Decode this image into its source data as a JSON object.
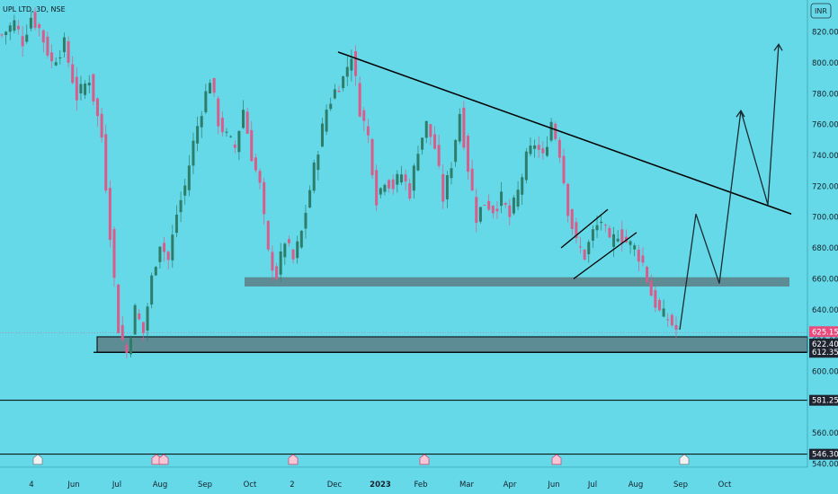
{
  "header": {
    "symbol_label": "UPL LTD, 3D, NSE"
  },
  "unit_button": "INR",
  "colors": {
    "background": "#65d9e8",
    "up_candle": "#2e7d6a",
    "down_candle": "#d95c8a",
    "zone": "#5e8c94",
    "line": "#000000",
    "last_price_tag": "#e84c7d",
    "tag_dark": "#1e2430"
  },
  "chart_data": {
    "type": "candlestick",
    "title": "",
    "ylim": [
      540,
      835
    ],
    "y_ticks": [
      540,
      560,
      580,
      600,
      620,
      640,
      660,
      680,
      700,
      720,
      740,
      760,
      780,
      800,
      820
    ],
    "x_labels": [
      "4",
      "Jun",
      "Jul",
      "Aug",
      "Sep",
      "Oct",
      "2",
      "Dec",
      "2023",
      "Feb",
      "Mar",
      "Apr",
      "Jun",
      "Jul",
      "Aug",
      "Sep",
      "Oct"
    ],
    "price_path": [
      [
        0,
        818
      ],
      [
        3,
        826
      ],
      [
        5,
        814
      ],
      [
        7,
        830
      ],
      [
        9,
        822
      ],
      [
        12,
        800
      ],
      [
        15,
        812
      ],
      [
        18,
        778
      ],
      [
        21,
        790
      ],
      [
        24,
        752
      ],
      [
        26,
        690
      ],
      [
        28,
        628
      ],
      [
        30,
        612
      ],
      [
        32,
        640
      ],
      [
        34,
        625
      ],
      [
        36,
        660
      ],
      [
        38,
        684
      ],
      [
        40,
        672
      ],
      [
        42,
        702
      ],
      [
        44,
        720
      ],
      [
        46,
        748
      ],
      [
        48,
        770
      ],
      [
        50,
        790
      ],
      [
        52,
        762
      ],
      [
        54,
        752
      ],
      [
        56,
        745
      ],
      [
        58,
        770
      ],
      [
        60,
        740
      ],
      [
        62,
        720
      ],
      [
        64,
        676
      ],
      [
        66,
        662
      ],
      [
        68,
        685
      ],
      [
        70,
        672
      ],
      [
        72,
        690
      ],
      [
        74,
        718
      ],
      [
        76,
        745
      ],
      [
        78,
        770
      ],
      [
        80,
        782
      ],
      [
        82,
        790
      ],
      [
        84,
        806
      ],
      [
        86,
        770
      ],
      [
        88,
        752
      ],
      [
        90,
        712
      ],
      [
        92,
        725
      ],
      [
        94,
        720
      ],
      [
        96,
        728
      ],
      [
        98,
        716
      ],
      [
        100,
        745
      ],
      [
        102,
        760
      ],
      [
        104,
        745
      ],
      [
        106,
        712
      ],
      [
        108,
        735
      ],
      [
        110,
        768
      ],
      [
        112,
        732
      ],
      [
        114,
        700
      ],
      [
        116,
        710
      ],
      [
        118,
        705
      ],
      [
        120,
        712
      ],
      [
        122,
        700
      ],
      [
        124,
        716
      ],
      [
        126,
        738
      ],
      [
        128,
        748
      ],
      [
        130,
        738
      ],
      [
        132,
        762
      ],
      [
        134,
        742
      ],
      [
        136,
        705
      ],
      [
        138,
        683
      ],
      [
        140,
        675
      ],
      [
        142,
        690
      ],
      [
        144,
        698
      ],
      [
        146,
        682
      ],
      [
        148,
        690
      ],
      [
        150,
        684
      ],
      [
        152,
        680
      ],
      [
        154,
        670
      ],
      [
        156,
        650
      ],
      [
        158,
        638
      ],
      [
        160,
        634
      ],
      [
        162,
        627
      ]
    ],
    "support_zone_lower": {
      "y_from": 612.35,
      "y_to": 622.4
    },
    "support_zone_upper": {
      "y_from": 655,
      "y_to": 661
    },
    "trendline": {
      "from_price": 807,
      "to_price": 702
    },
    "projection_prices": [
      627,
      702,
      657,
      769,
      708,
      812
    ],
    "horizontal_levels": [
      581.25,
      546.3
    ],
    "price_tags": [
      {
        "value": "625.15",
        "price": 625.15,
        "style": "pink"
      },
      {
        "value": "622.40",
        "price": 622.4,
        "style": "dark"
      },
      {
        "value": "612.35",
        "price": 612.35,
        "style": "dark"
      },
      {
        "value": "581.25",
        "price": 581.25,
        "style": "dark"
      },
      {
        "value": "546.30",
        "price": 546.3,
        "style": "dark"
      }
    ],
    "events": [
      "dividend",
      "earnings",
      "earnings",
      "earnings",
      "earnings",
      "earnings"
    ]
  }
}
